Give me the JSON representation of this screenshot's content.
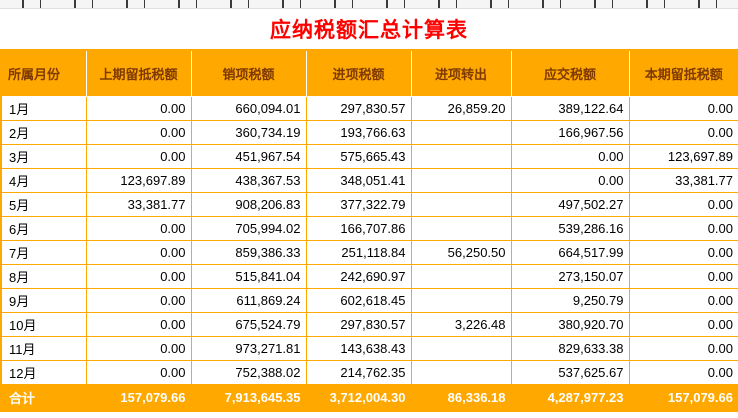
{
  "title": "应纳税额汇总计算表",
  "table": {
    "headers": [
      "所属月份",
      "上期留抵税额",
      "销项税额",
      "进项税额",
      "进项转出",
      "应交税额",
      "本期留抵税额"
    ],
    "rows": [
      {
        "month": "1月",
        "values": [
          "0.00",
          "660,094.01",
          "297,830.57",
          "26,859.20",
          "389,122.64",
          "0.00"
        ]
      },
      {
        "month": "2月",
        "values": [
          "0.00",
          "360,734.19",
          "193,766.63",
          "",
          "166,967.56",
          "0.00"
        ]
      },
      {
        "month": "3月",
        "values": [
          "0.00",
          "451,967.54",
          "575,665.43",
          "",
          "0.00",
          "123,697.89"
        ]
      },
      {
        "month": "4月",
        "values": [
          "123,697.89",
          "438,367.53",
          "348,051.41",
          "",
          "0.00",
          "33,381.77"
        ]
      },
      {
        "month": "5月",
        "values": [
          "33,381.77",
          "908,206.83",
          "377,322.79",
          "",
          "497,502.27",
          "0.00"
        ]
      },
      {
        "month": "6月",
        "values": [
          "0.00",
          "705,994.02",
          "166,707.86",
          "",
          "539,286.16",
          "0.00"
        ]
      },
      {
        "month": "7月",
        "values": [
          "0.00",
          "859,386.33",
          "251,118.84",
          "56,250.50",
          "664,517.99",
          "0.00"
        ]
      },
      {
        "month": "8月",
        "values": [
          "0.00",
          "515,841.04",
          "242,690.97",
          "",
          "273,150.07",
          "0.00"
        ]
      },
      {
        "month": "9月",
        "values": [
          "0.00",
          "611,869.24",
          "602,618.45",
          "",
          "9,250.79",
          "0.00"
        ]
      },
      {
        "month": "10月",
        "values": [
          "0.00",
          "675,524.79",
          "297,830.57",
          "3,226.48",
          "380,920.70",
          "0.00"
        ]
      },
      {
        "month": "11月",
        "values": [
          "0.00",
          "973,271.81",
          "143,638.43",
          "",
          "829,633.38",
          "0.00"
        ]
      },
      {
        "month": "12月",
        "values": [
          "0.00",
          "752,388.02",
          "214,762.35",
          "",
          "537,625.67",
          "0.00"
        ]
      }
    ],
    "total": {
      "label": "合计",
      "values": [
        "157,079.66",
        "7,913,645.35",
        "3,712,004.30",
        "86,336.18",
        "4,287,977.23",
        "157,079.66"
      ]
    }
  },
  "colors": {
    "header_bg": "#FFA800",
    "header_text": "#7E3A00",
    "title_text": "#FF0000",
    "total_bg": "#FFA800",
    "total_text": "#FFFFFF",
    "grid": "#FFA800"
  }
}
